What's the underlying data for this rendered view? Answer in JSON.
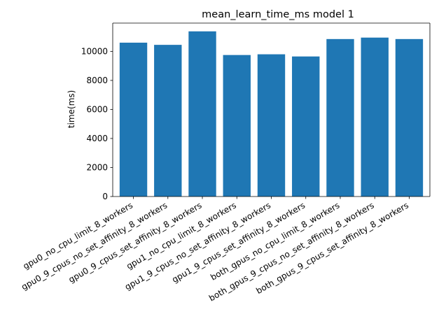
{
  "chart_data": {
    "type": "bar",
    "title": "mean_learn_time_ms model 1",
    "xlabel": "",
    "ylabel": "time(ms)",
    "categories": [
      "gpu0_no_cpu_limit_8_workers",
      "gpu0_9_cpus_no_set_affinity_8_workers",
      "gpu0_9_cpus_set_affinity_8_workers",
      "gpu1_no_cpu_limit_8_workers",
      "gpu1_9_cpus_no_set_affinity_8_workers",
      "gpu1_9_cpus_set_affinity_8_workers",
      "both_gpus_no_cpu_limit_8_workers",
      "both_gpus_9_cpus_no_set_affinity_8_workers",
      "both_gpus_9_cpus_set_affinity_8_workers"
    ],
    "values": [
      10600,
      10450,
      11380,
      9750,
      9800,
      9650,
      10850,
      10950,
      10850
    ],
    "ylim": [
      0,
      11950
    ],
    "yticks": [
      0,
      2000,
      4000,
      6000,
      8000,
      10000
    ],
    "bar_color": "#1f77b4",
    "grid": false,
    "legend": "none"
  }
}
